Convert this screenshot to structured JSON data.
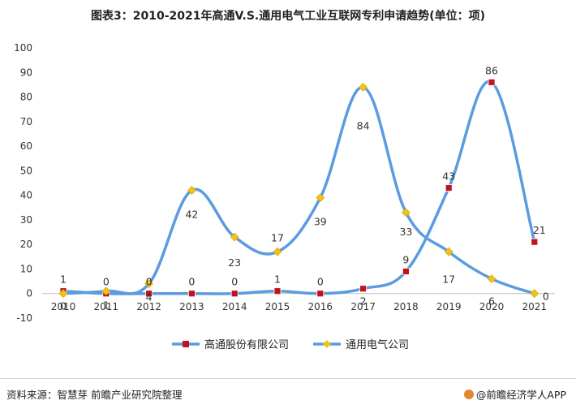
{
  "chart_data": {
    "type": "line",
    "title": "图表3：2010-2021年高通V.S.通用电气工业互联网专利申请趋势(单位：项)",
    "categories": [
      "2010",
      "2011",
      "2012",
      "2013",
      "2014",
      "2015",
      "2016",
      "2017",
      "2018",
      "2019",
      "2020",
      "2021"
    ],
    "y_ticks": [
      "-10",
      "0",
      "10",
      "20",
      "30",
      "40",
      "50",
      "60",
      "70",
      "80",
      "90",
      "100"
    ],
    "ylim": [
      -10,
      100
    ],
    "grid": false,
    "legend_position": "bottom",
    "series": [
      {
        "name": "高通股份有限公司",
        "color": "#5b9be0",
        "marker": "square",
        "marker_color": "#c0141c",
        "values": [
          1,
          0,
          0,
          0,
          0,
          1,
          0,
          2,
          9,
          43,
          86,
          21
        ],
        "labels": [
          "1",
          "0",
          "0",
          "0",
          "0",
          "1",
          "0",
          "2",
          "9",
          "43",
          "86",
          "21"
        ]
      },
      {
        "name": "通用电气公司",
        "color": "#5b9be0",
        "marker": "diamond",
        "marker_color": "#f2c21b",
        "values": [
          0,
          1,
          4,
          42,
          23,
          17,
          39,
          84,
          33,
          17,
          6,
          0
        ],
        "labels": [
          "0",
          "1",
          "4",
          "42",
          "23",
          "17",
          "39",
          "84",
          "33",
          "17",
          "6",
          "0"
        ]
      }
    ]
  },
  "footer": {
    "source": "资料来源：智慧芽 前瞻产业研究院整理",
    "brand": "@前瞻经济学人APP"
  }
}
